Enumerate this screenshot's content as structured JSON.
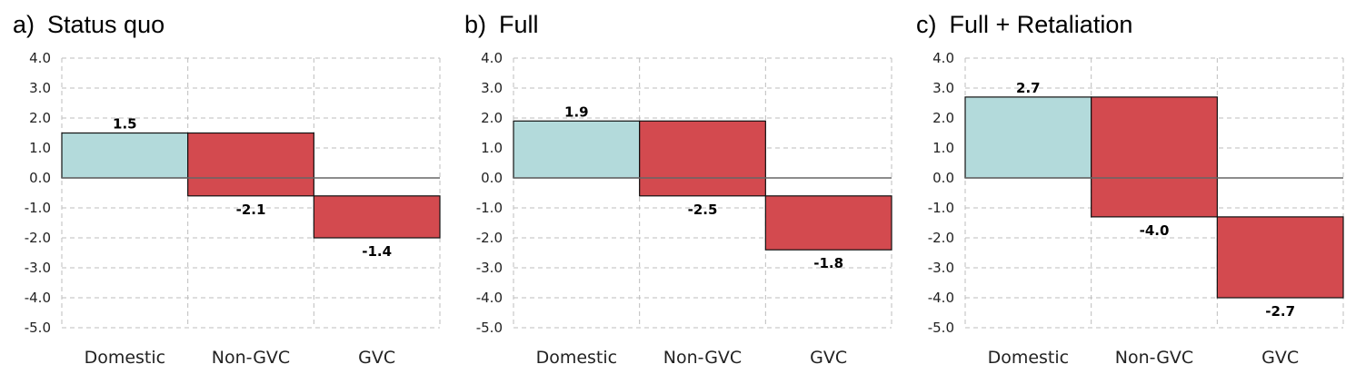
{
  "colors": {
    "positive": "#b3dadb",
    "negative": "#d34a4f",
    "grid": "#bdbdbd",
    "axis": "#666666"
  },
  "chart_data": [
    {
      "type": "bar",
      "letter": "a)",
      "title": "Status quo",
      "categories": [
        "Domestic",
        "Non-GVC",
        "GVC"
      ],
      "bars": [
        {
          "category": "Domestic",
          "start": 0.0,
          "end": 1.5,
          "value": 1.5,
          "label": "1.5"
        },
        {
          "category": "Non-GVC",
          "start": 1.5,
          "end": -0.6,
          "value": -2.1,
          "label": "-2.1"
        },
        {
          "category": "GVC",
          "start": -0.6,
          "end": -2.0,
          "value": -1.4,
          "label": "-1.4"
        }
      ],
      "ylim": [
        -5.0,
        4.0
      ],
      "yticks": [
        "4.0",
        "3.0",
        "2.0",
        "1.0",
        "0.0",
        "-1.0",
        "-2.0",
        "-3.0",
        "-4.0",
        "-5.0"
      ],
      "grid": true
    },
    {
      "type": "bar",
      "letter": "b)",
      "title": "Full",
      "categories": [
        "Domestic",
        "Non-GVC",
        "GVC"
      ],
      "bars": [
        {
          "category": "Domestic",
          "start": 0.0,
          "end": 1.9,
          "value": 1.9,
          "label": "1.9"
        },
        {
          "category": "Non-GVC",
          "start": 1.9,
          "end": -0.6,
          "value": -2.5,
          "label": "-2.5"
        },
        {
          "category": "GVC",
          "start": -0.6,
          "end": -2.4,
          "value": -1.8,
          "label": "-1.8"
        }
      ],
      "ylim": [
        -5.0,
        4.0
      ],
      "yticks": [
        "4.0",
        "3.0",
        "2.0",
        "1.0",
        "0.0",
        "-1.0",
        "-2.0",
        "-3.0",
        "-4.0",
        "-5.0"
      ],
      "grid": true
    },
    {
      "type": "bar",
      "letter": "c)",
      "title": "Full + Retaliation",
      "categories": [
        "Domestic",
        "Non-GVC",
        "GVC"
      ],
      "bars": [
        {
          "category": "Domestic",
          "start": 0.0,
          "end": 2.7,
          "value": 2.7,
          "label": "2.7"
        },
        {
          "category": "Non-GVC",
          "start": 2.7,
          "end": -1.3,
          "value": -4.0,
          "label": "-4.0"
        },
        {
          "category": "GVC",
          "start": -1.3,
          "end": -4.0,
          "value": -2.7,
          "label": "-2.7"
        }
      ],
      "ylim": [
        -5.0,
        4.0
      ],
      "yticks": [
        "4.0",
        "3.0",
        "2.0",
        "1.0",
        "0.0",
        "-1.0",
        "-2.0",
        "-3.0",
        "-4.0",
        "-5.0"
      ],
      "grid": true
    }
  ]
}
